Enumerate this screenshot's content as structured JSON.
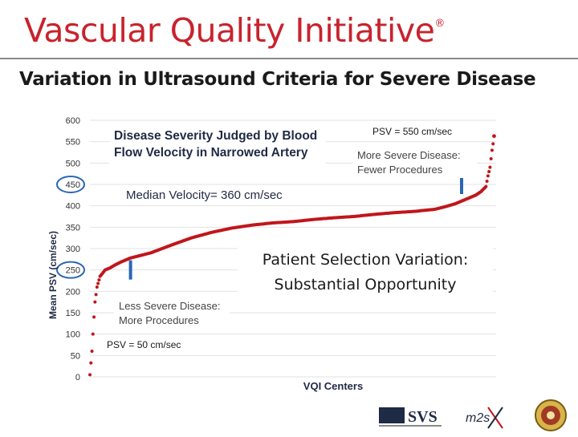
{
  "brand": {
    "name": "Vascular Quality Initiative",
    "mark": "®"
  },
  "slide_title": "Variation in Ultrasound Criteria for Severe Disease",
  "chart_data": {
    "type": "scatter",
    "xlabel": "VQI Centers",
    "ylabel": "Mean PSV (cm/sec)",
    "ylim": [
      0,
      600
    ],
    "yticks": [
      0,
      50,
      100,
      150,
      200,
      250,
      300,
      350,
      400,
      450,
      500,
      550,
      600
    ],
    "highlighted_ticks": [
      250,
      450
    ],
    "grid": true,
    "color": "#c0161c",
    "x": [
      0,
      2,
      3,
      4,
      5,
      7,
      10,
      15,
      20,
      25,
      30,
      40,
      60,
      80,
      100,
      120,
      140,
      160,
      180,
      200,
      220,
      240,
      260,
      280,
      300,
      320,
      340,
      350,
      360,
      370,
      380,
      385,
      390,
      392,
      394,
      395,
      396,
      397,
      398
    ],
    "y": [
      5,
      60,
      100,
      140,
      175,
      210,
      235,
      250,
      255,
      262,
      268,
      278,
      290,
      308,
      325,
      338,
      348,
      355,
      360,
      363,
      368,
      372,
      375,
      380,
      384,
      387,
      392,
      398,
      405,
      415,
      425,
      433,
      445,
      470,
      490,
      510,
      530,
      545,
      563
    ],
    "annotations": {
      "box_title": "Disease Severity Judged by Blood Flow Velocity in Narrowed Artery",
      "median": "Median Velocity= 360 cm/sec",
      "psv_high": "PSV = 550 cm/sec",
      "psv_low": "PSV = 50 cm/sec",
      "more_severe": "More Severe Disease: Fewer Procedures",
      "less_severe": "Less Severe Disease: More Procedures",
      "variation_line1": "Patient Selection Variation:",
      "variation_line2": "Substantial Opportunity"
    },
    "markers": [
      {
        "x": 40,
        "y": 250
      },
      {
        "x": 366,
        "y": 450
      }
    ]
  },
  "footer": {
    "logo_svs": "SVS",
    "logo_m2s": "m2s"
  }
}
